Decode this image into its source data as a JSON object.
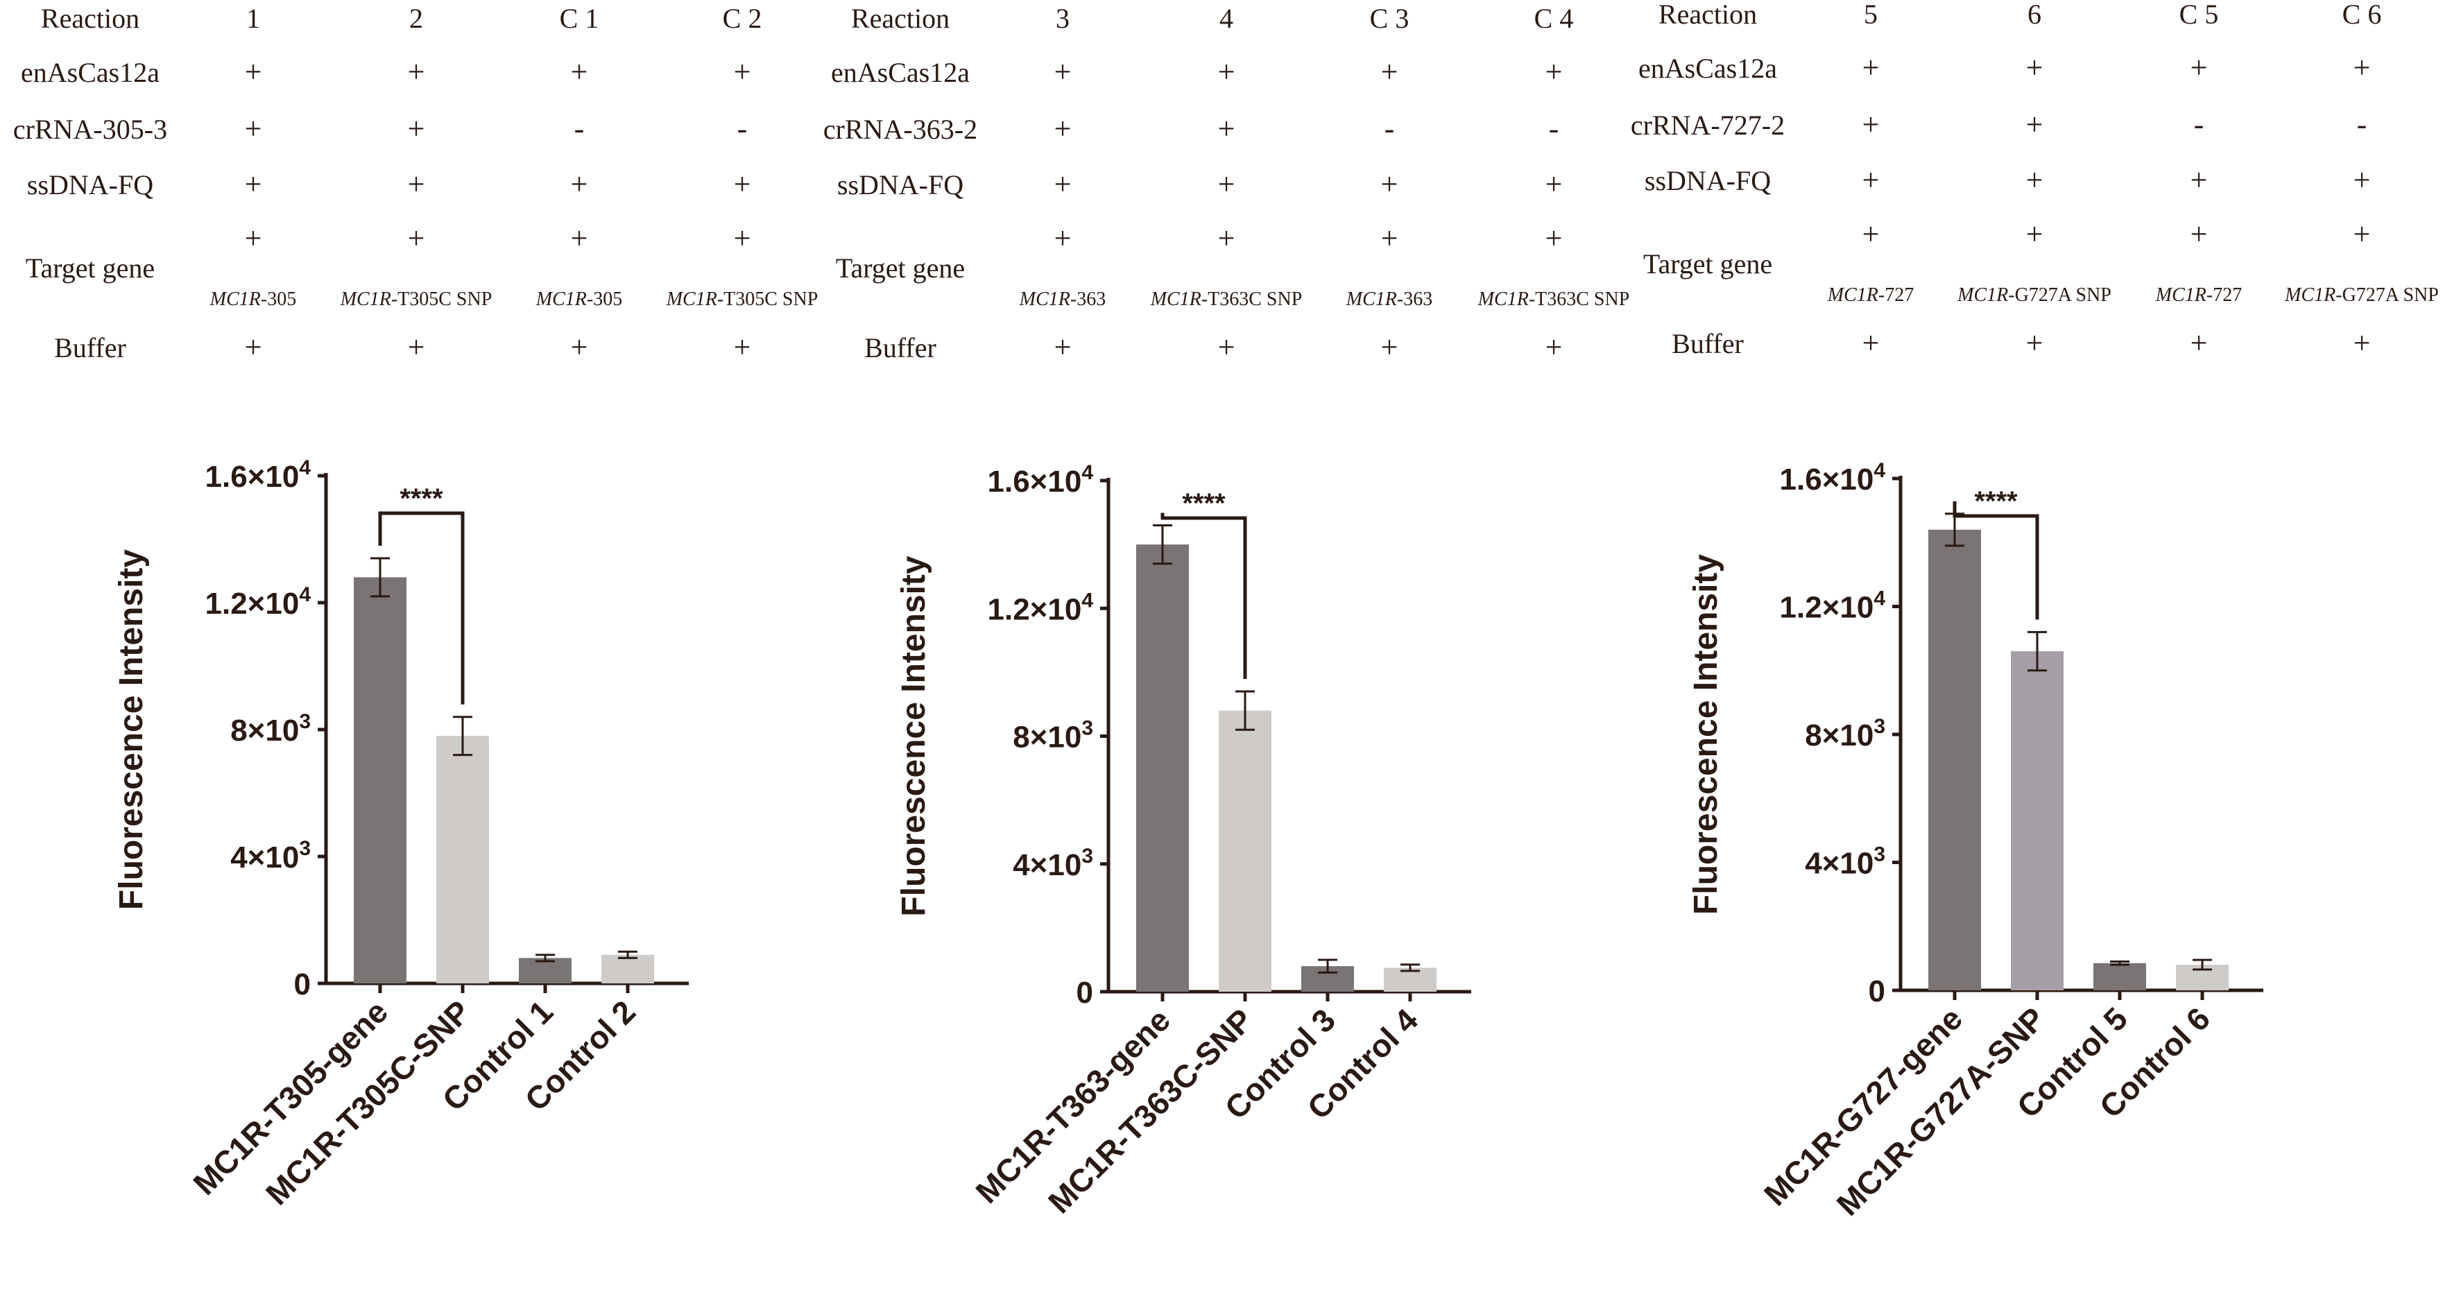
{
  "colors": {
    "text": "#2a1a14",
    "axis": "#2a1a14",
    "bar_gene": "#7a7474",
    "bar_snp_light": "#cfcbc9",
    "bar_snp_purple": "#a69fa8",
    "bar_control_dark": "#7a7474",
    "bar_control_light": "#cfcbc9"
  },
  "tables": [
    {
      "columns": [
        "1",
        "2",
        "C 1",
        "C 2"
      ],
      "rows": [
        {
          "label": "Reaction",
          "cells": [
            "1",
            "2",
            "C 1",
            "C 2"
          ]
        },
        {
          "label": "enAsCas12a",
          "cells": [
            "+",
            "+",
            "+",
            "+"
          ]
        },
        {
          "label": "crRNA-305-3",
          "cells": [
            "+",
            "+",
            "-",
            "-"
          ]
        },
        {
          "label": "ssDNA-FQ",
          "cells": [
            "+",
            "+",
            "+",
            "+"
          ]
        },
        {
          "label": "Target gene",
          "cells": [
            "+",
            "+",
            "+",
            "+"
          ],
          "sub": [
            {
              "italic": "MC1R",
              "rest": "-305"
            },
            {
              "italic": "MC1R",
              "rest": "-T305C SNP"
            },
            {
              "italic": "MC1R",
              "rest": "-305"
            },
            {
              "italic": "MC1R",
              "rest": "-T305C SNP"
            }
          ]
        },
        {
          "label": "Buffer",
          "cells": [
            "+",
            "+",
            "+",
            "+"
          ]
        }
      ]
    },
    {
      "columns": [
        "3",
        "4",
        "C 3",
        "C 4"
      ],
      "rows": [
        {
          "label": "Reaction",
          "cells": [
            "3",
            "4",
            "C 3",
            "C 4"
          ]
        },
        {
          "label": "enAsCas12a",
          "cells": [
            "+",
            "+",
            "+",
            "+"
          ]
        },
        {
          "label": "crRNA-363-2",
          "cells": [
            "+",
            "+",
            "-",
            "-"
          ]
        },
        {
          "label": "ssDNA-FQ",
          "cells": [
            "+",
            "+",
            "+",
            "+"
          ]
        },
        {
          "label": "Target gene",
          "cells": [
            "+",
            "+",
            "+",
            "+"
          ],
          "sub": [
            {
              "italic": "MC1R",
              "rest": "-363"
            },
            {
              "italic": "MC1R",
              "rest": "-T363C SNP"
            },
            {
              "italic": "MC1R",
              "rest": "-363"
            },
            {
              "italic": "MC1R",
              "rest": "-T363C SNP"
            }
          ]
        },
        {
          "label": "Buffer",
          "cells": [
            "+",
            "+",
            "+",
            "+"
          ]
        }
      ]
    },
    {
      "columns": [
        "5",
        "6",
        "C 5",
        "C 6"
      ],
      "rows": [
        {
          "label": "Reaction",
          "cells": [
            "5",
            "6",
            "C 5",
            "C 6"
          ]
        },
        {
          "label": "enAsCas12a",
          "cells": [
            "+",
            "+",
            "+",
            "+"
          ]
        },
        {
          "label": "crRNA-727-2",
          "cells": [
            "+",
            "+",
            "-",
            "-"
          ]
        },
        {
          "label": "ssDNA-FQ",
          "cells": [
            "+",
            "+",
            "+",
            "+"
          ]
        },
        {
          "label": "Target gene",
          "cells": [
            "+",
            "+",
            "+",
            "+"
          ],
          "sub": [
            {
              "italic": "MC1R",
              "rest": "-727"
            },
            {
              "italic": "MC1R",
              "rest": "-G727A SNP"
            },
            {
              "italic": "MC1R",
              "rest": "-727"
            },
            {
              "italic": "MC1R",
              "rest": "-G727A SNP"
            }
          ]
        },
        {
          "label": "Buffer",
          "cells": [
            "+",
            "+",
            "+",
            "+"
          ]
        }
      ]
    }
  ],
  "chart_data": [
    {
      "type": "bar",
      "title": "",
      "ylabel": "Fluorescence Intensity",
      "xlabel": "",
      "ylim": [
        0,
        16000
      ],
      "yticks": [
        {
          "value": 0,
          "mant": "0",
          "exp": ""
        },
        {
          "value": 4000,
          "mant": "4×10",
          "exp": "3"
        },
        {
          "value": 8000,
          "mant": "8×10",
          "exp": "3"
        },
        {
          "value": 12000,
          "mant": "1.2×10",
          "exp": "4"
        },
        {
          "value": 16000,
          "mant": "1.6×10",
          "exp": "4"
        }
      ],
      "categories": [
        "MC1R-T305-gene",
        "MC1R-T305C-SNP",
        "Control 1",
        "Control 2"
      ],
      "values": [
        12800,
        7800,
        800,
        900
      ],
      "errors": [
        600,
        600,
        100,
        100
      ],
      "bar_colors": [
        "#7a7474",
        "#cfcbc9",
        "#7a7474",
        "#cfcbc9"
      ],
      "significance": {
        "from": 0,
        "to": 1,
        "label": "****"
      }
    },
    {
      "type": "bar",
      "title": "",
      "ylabel": "Fluorescence Intensity",
      "xlabel": "",
      "ylim": [
        0,
        16000
      ],
      "yticks": [
        {
          "value": 0,
          "mant": "0",
          "exp": ""
        },
        {
          "value": 4000,
          "mant": "4×10",
          "exp": "3"
        },
        {
          "value": 8000,
          "mant": "8×10",
          "exp": "3"
        },
        {
          "value": 12000,
          "mant": "1.2×10",
          "exp": "4"
        },
        {
          "value": 16000,
          "mant": "1.6×10",
          "exp": "4"
        }
      ],
      "categories": [
        "MC1R-T363-gene",
        "MC1R-T363C-SNP",
        "Control 3",
        "Control 4"
      ],
      "values": [
        14000,
        8800,
        800,
        750
      ],
      "errors": [
        600,
        600,
        200,
        100
      ],
      "bar_colors": [
        "#7a7474",
        "#cfcbc9",
        "#7a7474",
        "#cfcbc9"
      ],
      "significance": {
        "from": 0,
        "to": 1,
        "label": "****"
      }
    },
    {
      "type": "bar",
      "title": "",
      "ylabel": "Fluorescence Intensity",
      "xlabel": "",
      "ylim": [
        0,
        16000
      ],
      "yticks": [
        {
          "value": 0,
          "mant": "0",
          "exp": ""
        },
        {
          "value": 4000,
          "mant": "4×10",
          "exp": "3"
        },
        {
          "value": 8000,
          "mant": "8×10",
          "exp": "3"
        },
        {
          "value": 12000,
          "mant": "1.2×10",
          "exp": "4"
        },
        {
          "value": 16000,
          "mant": "1.6×10",
          "exp": "4"
        }
      ],
      "categories": [
        "MC1R-G727-gene",
        "MC1R-G727A-SNP",
        "Control 5",
        "Control 6"
      ],
      "values": [
        14400,
        10600,
        850,
        800
      ],
      "errors": [
        500,
        600,
        50,
        150
      ],
      "bar_colors": [
        "#7a7474",
        "#a69fa8",
        "#7a7474",
        "#cfcbc9"
      ],
      "significance": {
        "from": 0,
        "to": 1,
        "label": "****"
      }
    }
  ]
}
